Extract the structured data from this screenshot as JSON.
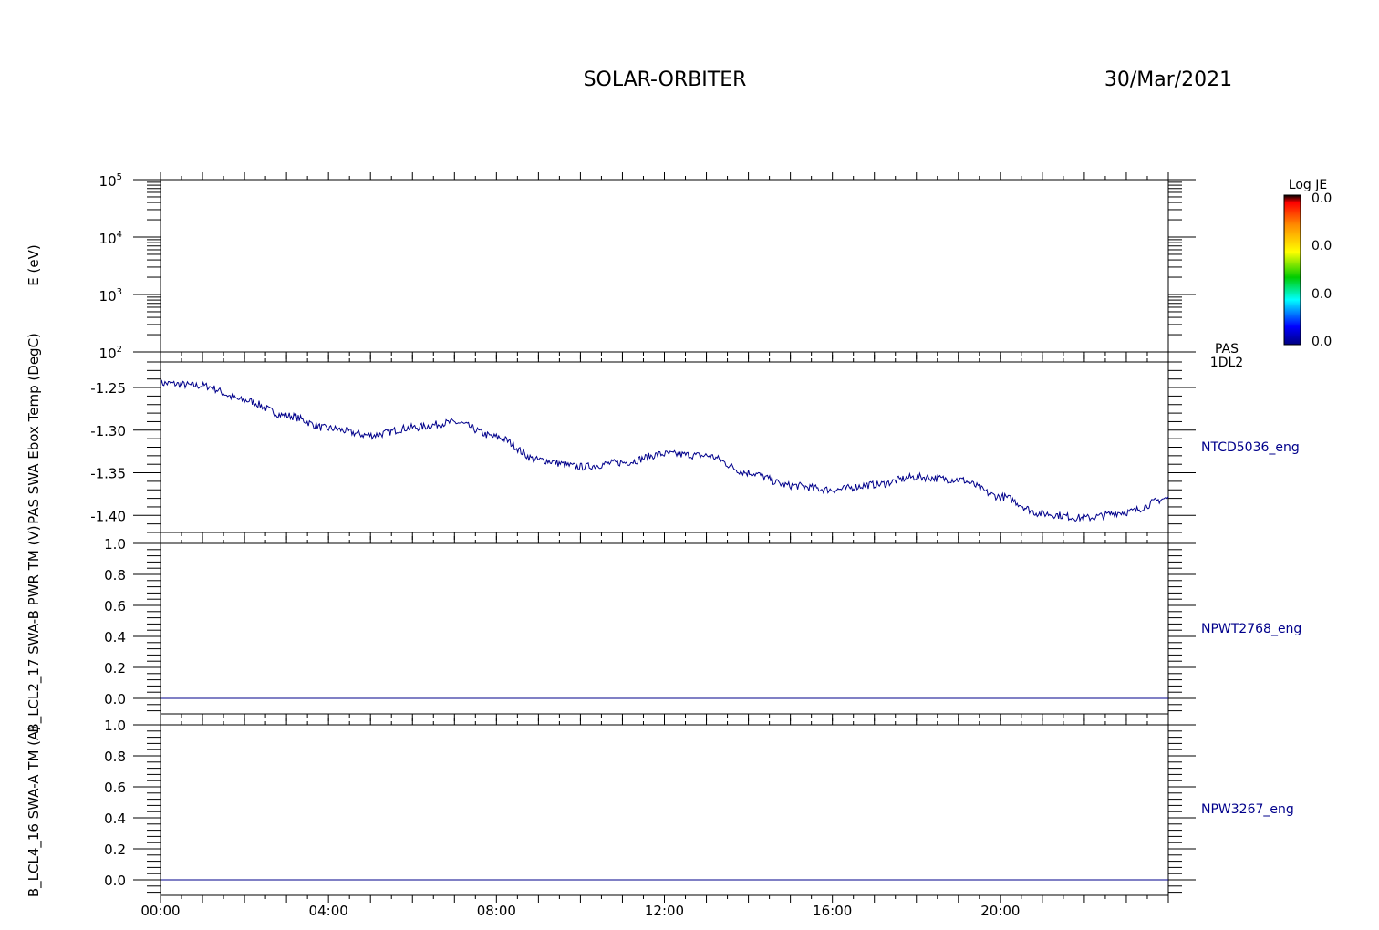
{
  "header": {
    "title": "SOLAR-ORBITER",
    "date": "30/Mar/2021"
  },
  "colorbar": {
    "label": "Log JE",
    "ticks": [
      "0.0",
      "0.0",
      "0.0",
      "0.0"
    ],
    "colors": [
      "#000000",
      "#ff0000",
      "#ff8c00",
      "#ffff00",
      "#00cc00",
      "#00ffff",
      "#0000ff",
      "#000080"
    ]
  },
  "line_color": "#00008b",
  "chart_data": [
    {
      "type": "heatmap",
      "ylabel": "E (eV)",
      "right_label": [
        "PAS",
        "1DL2"
      ],
      "yscale": "log",
      "ylim": [
        100,
        100000
      ],
      "y_ticks": [
        {
          "base": "10",
          "exp": "5"
        },
        {
          "base": "10",
          "exp": "4"
        },
        {
          "base": "10",
          "exp": "3"
        },
        {
          "base": "10",
          "exp": "2"
        }
      ],
      "values": []
    },
    {
      "type": "line",
      "ylabel": "NTCD5036_eng",
      "left_label": "PAS SWA Ebox Temp (DegC)",
      "ylim": [
        -1.42,
        -1.22
      ],
      "y_ticks": [
        "-1.25",
        "-1.30",
        "-1.35",
        "-1.40"
      ],
      "x": [
        "00:00",
        "01:00",
        "02:00",
        "03:00",
        "04:00",
        "05:00",
        "06:00",
        "07:00",
        "08:00",
        "09:00",
        "10:00",
        "11:00",
        "12:00",
        "13:00",
        "14:00",
        "15:00",
        "16:00",
        "17:00",
        "18:00",
        "19:00",
        "20:00",
        "21:00",
        "22:00",
        "23:00",
        "24:00"
      ],
      "values": [
        -1.245,
        -1.248,
        -1.265,
        -1.283,
        -1.298,
        -1.306,
        -1.297,
        -1.291,
        -1.308,
        -1.335,
        -1.343,
        -1.338,
        -1.328,
        -1.33,
        -1.35,
        -1.365,
        -1.37,
        -1.364,
        -1.355,
        -1.358,
        -1.378,
        -1.398,
        -1.403,
        -1.396,
        -1.38
      ]
    },
    {
      "type": "line",
      "ylabel": "NPWT2768_eng",
      "left_label": "B_LCL2_17 SWA-B PWR TM (V)",
      "ylim": [
        -0.1,
        1.0
      ],
      "y_ticks": [
        "1.0",
        "0.8",
        "0.6",
        "0.4",
        "0.2",
        "0.0"
      ],
      "x": [
        "00:00",
        "24:00"
      ],
      "values": [
        0.0,
        0.0
      ]
    },
    {
      "type": "line",
      "ylabel": "NPW3267_eng",
      "left_label": "B_LCL4_16 SWA-A TM (A)",
      "ylim": [
        -0.1,
        1.0
      ],
      "y_ticks": [
        "1.0",
        "0.8",
        "0.6",
        "0.4",
        "0.2",
        "0.0"
      ],
      "x": [
        "00:00",
        "24:00"
      ],
      "values": [
        0.0,
        0.0
      ]
    }
  ],
  "x_axis": {
    "range_hours": [
      0,
      24
    ],
    "tick_labels": [
      "00:00",
      "04:00",
      "08:00",
      "12:00",
      "16:00",
      "20:00"
    ]
  }
}
